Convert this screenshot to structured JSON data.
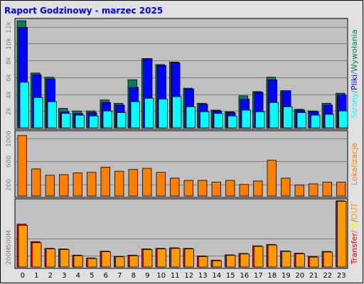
{
  "colors": {
    "background": "#e0e0e0",
    "plot_bg": "#c0c0c0",
    "border": "#000000",
    "title": "#0000ff",
    "grid": "#808080",
    "tick_text": "#808080",
    "hits": "#00805c",
    "files": "#0000ff",
    "pages": "#00ffff",
    "sites": "#ff8000",
    "kbytes": "#ff0000",
    "kbin": "#ffff00",
    "kbout": "#ff9900"
  },
  "chart_data": {
    "type": "bar",
    "title": "Raport Godzinowy -  marzec 2025",
    "categories": [
      "0",
      "1",
      "2",
      "3",
      "4",
      "5",
      "6",
      "7",
      "8",
      "9",
      "10",
      "11",
      "12",
      "13",
      "14",
      "15",
      "16",
      "17",
      "18",
      "19",
      "20",
      "21",
      "22",
      "23"
    ],
    "panels": [
      {
        "name": "requests",
        "ylim": [
          0,
          12800
        ],
        "yticks": [
          {
            "value": 2000,
            "label": "2k"
          },
          {
            "value": 4000,
            "label": "4k"
          },
          {
            "value": 6000,
            "label": "6k"
          },
          {
            "value": 8000,
            "label": "8k"
          },
          {
            "value": 10000,
            "label": "10k"
          },
          {
            "value": 12000,
            "label": "12k"
          }
        ],
        "right_label_parts": [
          {
            "text": "Strony",
            "color_key": "pages"
          },
          {
            "text": "/",
            "color_key": "grid"
          },
          {
            "text": "Pliki",
            "color_key": "files"
          },
          {
            "text": "/",
            "color_key": "grid"
          },
          {
            "text": "Wywołania",
            "color_key": "hits"
          }
        ],
        "series": [
          {
            "color_key": "hits",
            "values": [
              12700,
              6500,
              6000,
              2300,
              2000,
              2000,
              3300,
              2900,
              5700,
              8200,
              7500,
              7800,
              4700,
              2900,
              2100,
              1900,
              3800,
              4300,
              6000,
              4400,
              2200,
              2000,
              2900,
              4100
            ]
          },
          {
            "color_key": "files",
            "values": [
              11900,
              6300,
              5800,
              1900,
              1700,
              1800,
              3000,
              2700,
              4800,
              8200,
              7400,
              7700,
              4600,
              2800,
              2000,
              1800,
              3400,
              4200,
              5700,
              4400,
              2100,
              1900,
              2700,
              3900
            ]
          },
          {
            "color_key": "pages",
            "values": [
              5400,
              3600,
              3100,
              1700,
              1500,
              1400,
              2000,
              1800,
              3100,
              3500,
              3400,
              3700,
              2500,
              1900,
              1700,
              1400,
              2100,
              1900,
              3000,
              2500,
              1800,
              1500,
              1600,
              2000
            ]
          }
        ]
      },
      {
        "name": "sites",
        "ylim": [
          0,
          1110
        ],
        "yticks": [
          {
            "value": 200,
            "label": "200"
          },
          {
            "value": 600,
            "label": "600"
          },
          {
            "value": 1000,
            "label": "1000"
          }
        ],
        "right_label_parts": [
          {
            "text": "Lokalizacje",
            "color_key": "sites"
          }
        ],
        "series": [
          {
            "color_key": "sites",
            "values": [
              1050,
              470,
              360,
              370,
              400,
              410,
              500,
              430,
              460,
              480,
              410,
              310,
              270,
              270,
              240,
              270,
              200,
              260,
              620,
              310,
              190,
              210,
              240,
              240
            ]
          }
        ]
      },
      {
        "name": "transfer",
        "ylim": [
          0,
          1185
        ],
        "yticks": [
          {
            "value": 200,
            "label": "200M"
          },
          {
            "value": 500,
            "label": "500M"
          }
        ],
        "right_label_parts": [
          {
            "text": "Transfer",
            "color_key": "kbytes"
          },
          {
            "text": "/",
            "color_key": "grid"
          },
          {
            "text": "IN",
            "color_key": "kbin"
          },
          {
            "text": "/",
            "color_key": "grid"
          },
          {
            "text": "OUT",
            "color_key": "kbout"
          }
        ],
        "series": [
          {
            "color_key": "kbytes",
            "values": [
              760,
              450,
              330,
              320,
              210,
              160,
              280,
              185,
              210,
              320,
              330,
              340,
              330,
              195,
              120,
              215,
              240,
              375,
              400,
              285,
              245,
              185,
              275,
              1175
            ]
          },
          {
            "color_key": "kbout",
            "values": [
              740,
              430,
              320,
              310,
              200,
              150,
              270,
              180,
              200,
              310,
              320,
              330,
              320,
              185,
              110,
              205,
              230,
              365,
              390,
              275,
              235,
              175,
              265,
              1165
            ]
          }
        ]
      }
    ]
  }
}
